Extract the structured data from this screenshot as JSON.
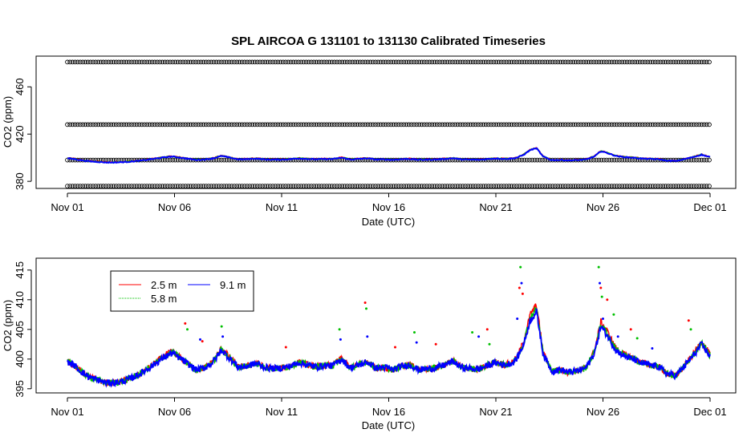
{
  "title": "SPL   AIRCOA  G    131101  to  131130   Calibrated Timeseries",
  "colors": {
    "s25": "#ff0000",
    "s58": "#00c000",
    "s91": "#0000ff",
    "ref": "#000000"
  },
  "chart_data": [
    {
      "type": "scatter",
      "panel": "top",
      "title": "SPL   AIRCOA  G    131101  to  131130   Calibrated Timeseries",
      "xlabel": "Date (UTC)",
      "ylabel": "CO2 (ppm)",
      "xlim": [
        0,
        30
      ],
      "ylim": [
        374,
        486
      ],
      "x_ticks": [
        0,
        5,
        10,
        15,
        20,
        25,
        30
      ],
      "x_tick_labels": [
        "Nov 01",
        "Nov 06",
        "Nov 11",
        "Nov 16",
        "Nov 21",
        "Nov 26",
        "Dec 01"
      ],
      "y_ticks": [
        380,
        420,
        460
      ],
      "y_tick_labels": [
        "380",
        "420",
        "460"
      ],
      "reference_levels": [
        376,
        398,
        428,
        481
      ],
      "series": [
        {
          "name": "2.5 m",
          "color": "#ff0000",
          "key": "p25"
        },
        {
          "name": "5.8 m",
          "color": "#00c000",
          "key": "p58"
        },
        {
          "name": "9.1 m",
          "color": "#0000ff",
          "key": "p91"
        }
      ]
    },
    {
      "type": "line",
      "panel": "bottom",
      "xlabel": "Date (UTC)",
      "ylabel": "CO2 (ppm)",
      "xlim": [
        0,
        30
      ],
      "ylim": [
        394.3,
        417
      ],
      "x_ticks": [
        0,
        5,
        10,
        15,
        20,
        25,
        30
      ],
      "x_tick_labels": [
        "Nov 01",
        "Nov 06",
        "Nov 11",
        "Nov 16",
        "Nov 21",
        "Nov 26",
        "Dec 01"
      ],
      "y_ticks": [
        395,
        400,
        405,
        410,
        415
      ],
      "y_tick_labels": [
        "395",
        "400",
        "405",
        "410",
        "415"
      ],
      "legend_position": "top-left",
      "series": [
        {
          "name": "2.5 m",
          "color": "#ff0000"
        },
        {
          "name": "5.8 m",
          "color": "#00c000"
        },
        {
          "name": "9.1 m",
          "color": "#0000ff"
        }
      ],
      "profile_9_1m": {
        "x": [
          0,
          0.3,
          0.6,
          1.0,
          1.4,
          1.8,
          2.2,
          2.6,
          3.0,
          3.4,
          3.8,
          4.2,
          4.6,
          4.9,
          5.3,
          5.7,
          6.0,
          6.4,
          6.8,
          7.2,
          7.6,
          8.0,
          8.4,
          8.8,
          9.2,
          9.6,
          10.0,
          10.4,
          10.8,
          11.2,
          11.6,
          12.0,
          12.4,
          12.8,
          13.2,
          13.6,
          14.0,
          14.4,
          14.8,
          15.2,
          15.6,
          16.0,
          16.4,
          16.8,
          17.2,
          17.6,
          18.0,
          18.4,
          18.8,
          19.2,
          19.6,
          20.0,
          20.4,
          20.8,
          21.0,
          21.3,
          21.6,
          21.9,
          22.2,
          22.6,
          23.0,
          23.4,
          23.8,
          24.2,
          24.6,
          24.9,
          25.2,
          25.6,
          26.0,
          26.4,
          26.8,
          27.2,
          27.6,
          28.0,
          28.4,
          28.8,
          29.2,
          29.6,
          30.0
        ],
        "y": [
          399.5,
          399.0,
          398.0,
          397.0,
          396.5,
          396.0,
          396.0,
          396.3,
          396.8,
          397.5,
          398.5,
          399.5,
          400.5,
          401.0,
          400.0,
          399.0,
          398.2,
          398.5,
          399.5,
          401.5,
          400.0,
          398.6,
          398.8,
          399.3,
          398.6,
          398.4,
          398.5,
          398.8,
          399.4,
          399.0,
          398.7,
          398.9,
          398.9,
          400.0,
          398.5,
          399.0,
          399.5,
          398.5,
          398.6,
          398.2,
          398.8,
          399.0,
          398.2,
          398.4,
          398.5,
          399.0,
          399.6,
          398.6,
          398.4,
          398.3,
          398.9,
          399.4,
          399.0,
          399.4,
          400.2,
          402.5,
          406.5,
          408.0,
          401.0,
          398.0,
          398.2,
          397.8,
          398.0,
          398.5,
          401.0,
          405.5,
          404.0,
          401.5,
          400.5,
          400.0,
          399.3,
          399.0,
          398.7,
          397.5,
          397.2,
          398.8,
          400.5,
          402.5,
          400.5
        ]
      }
    }
  ],
  "legend": {
    "items": [
      {
        "label": "2.5 m",
        "color": "#ff0000"
      },
      {
        "label": "9.1 m",
        "color": "#0000ff"
      },
      {
        "label": "5.8 m",
        "color": "#00c000"
      }
    ]
  }
}
